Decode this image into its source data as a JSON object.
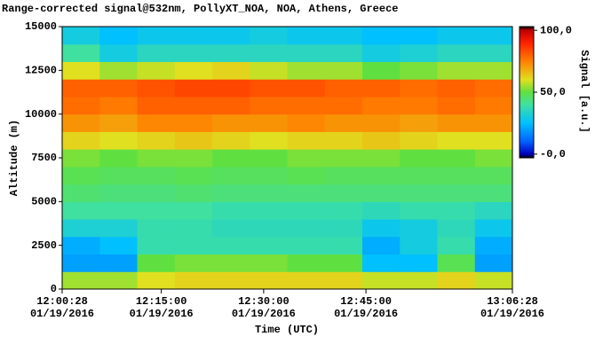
{
  "chart_data": {
    "type": "heatmap",
    "title": "Range-corrected signal@532nm, PollyXT_NOA, NOA, Athens, Greece",
    "xlabel": "Time (UTC)",
    "ylabel": "Altitude (m)",
    "colorbar_label": "Signal [a.u.]",
    "x_bins": [
      28,
      358,
      688,
      1018,
      1348,
      1678,
      2008,
      2338,
      2668,
      2998,
      3328,
      3658,
      3988
    ],
    "y_bins": [
      0,
      1000,
      2000,
      3000,
      4000,
      5000,
      6000,
      7000,
      8000,
      9000,
      10000,
      11000,
      12000,
      13000,
      14000,
      15000
    ],
    "z": [
      [
        55,
        55,
        60,
        62,
        62,
        62,
        62,
        62,
        58,
        58,
        62,
        58
      ],
      [
        20,
        20,
        50,
        52,
        52,
        52,
        50,
        50,
        25,
        25,
        48,
        20
      ],
      [
        22,
        25,
        38,
        38,
        38,
        38,
        38,
        38,
        22,
        30,
        38,
        22
      ],
      [
        32,
        32,
        38,
        38,
        36,
        36,
        36,
        36,
        28,
        30,
        36,
        28
      ],
      [
        40,
        40,
        40,
        40,
        38,
        38,
        38,
        38,
        36,
        38,
        38,
        35
      ],
      [
        45,
        44,
        44,
        45,
        44,
        44,
        44,
        44,
        44,
        44,
        44,
        44
      ],
      [
        48,
        47,
        47,
        48,
        47,
        47,
        48,
        47,
        47,
        47,
        47,
        47
      ],
      [
        52,
        50,
        52,
        52,
        50,
        50,
        52,
        52,
        52,
        50,
        50,
        52
      ],
      [
        62,
        60,
        62,
        64,
        62,
        60,
        62,
        62,
        64,
        62,
        60,
        60
      ],
      [
        72,
        70,
        74,
        74,
        72,
        72,
        74,
        72,
        72,
        70,
        72,
        72
      ],
      [
        78,
        76,
        80,
        80,
        80,
        78,
        78,
        78,
        76,
        76,
        78,
        76
      ],
      [
        80,
        80,
        82,
        84,
        84,
        82,
        82,
        80,
        80,
        78,
        80,
        78
      ],
      [
        60,
        55,
        58,
        60,
        62,
        58,
        55,
        55,
        50,
        52,
        55,
        55
      ],
      [
        40,
        30,
        35,
        35,
        35,
        35,
        35,
        35,
        30,
        32,
        35,
        35
      ],
      [
        30,
        25,
        28,
        28,
        28,
        30,
        28,
        28,
        25,
        25,
        28,
        28
      ]
    ],
    "xlim": [
      28,
      3988
    ],
    "xticks": [
      {
        "value": 28,
        "label": "12:00:28 01/19/2016"
      },
      {
        "value": 900,
        "label": "12:15:00 01/19/2016"
      },
      {
        "value": 1800,
        "label": "12:30:00 01/19/2016"
      },
      {
        "value": 2700,
        "label": "12:45:00 01/19/2016"
      },
      {
        "value": 3988,
        "label": "13:06:28 01/19/2016"
      }
    ],
    "ylim": [
      0,
      15000
    ],
    "yticks": [
      0,
      2500,
      5000,
      7500,
      10000,
      12500,
      15000
    ],
    "clim": [
      -3,
      103
    ],
    "cticks": [
      {
        "value": 0,
        "label": "-0,0"
      },
      {
        "value": 50,
        "label": "50,0"
      },
      {
        "value": 100,
        "label": "100,0"
      }
    ],
    "colorscale": [
      [
        -3,
        "#000000"
      ],
      [
        0,
        "#0000c0"
      ],
      [
        10,
        "#0060ff"
      ],
      [
        25,
        "#00c0ff"
      ],
      [
        40,
        "#40e0a0"
      ],
      [
        50,
        "#60e040"
      ],
      [
        60,
        "#e0e020"
      ],
      [
        75,
        "#ff8000"
      ],
      [
        90,
        "#ff2000"
      ],
      [
        100,
        "#c00000"
      ],
      [
        103,
        "#000000"
      ]
    ]
  }
}
